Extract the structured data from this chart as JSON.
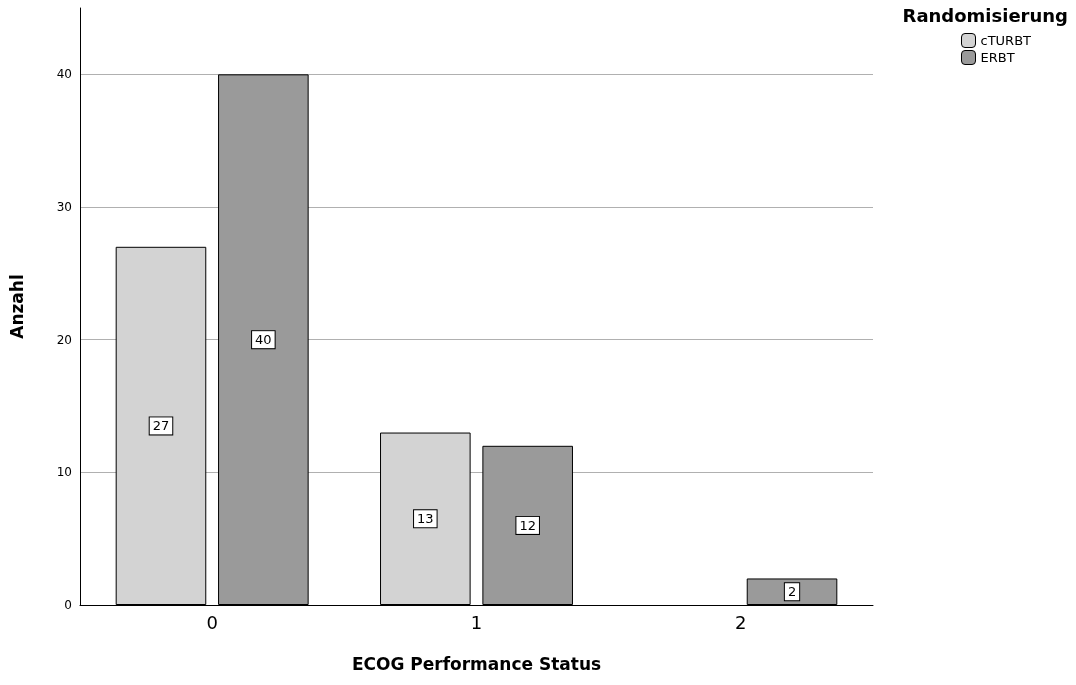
{
  "chart_data": {
    "type": "bar",
    "xlabel": "ECOG Performance Status",
    "ylabel": "Anzahl",
    "legend_title": "Randomisierung",
    "categories": [
      "0",
      "1",
      "2"
    ],
    "series": [
      {
        "name": "cTURBT",
        "color": "#d3d3d3",
        "values": [
          27,
          13,
          null
        ]
      },
      {
        "name": "ERBT",
        "color": "#9a9a9a",
        "values": [
          40,
          12,
          2
        ]
      }
    ],
    "ylim": [
      0,
      45
    ],
    "yticks": [
      0,
      10,
      20,
      30,
      40
    ],
    "grid": "y",
    "legend": "top right",
    "data_labels": true
  }
}
